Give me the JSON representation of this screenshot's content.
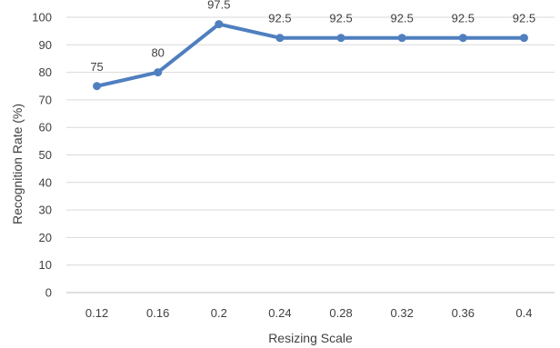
{
  "chart_data": {
    "type": "line",
    "title": "",
    "xlabel": "Resizing Scale",
    "ylabel": "Recognition Rate (%)",
    "categories": [
      "0.12",
      "0.16",
      "0.2",
      "0.24",
      "0.28",
      "0.32",
      "0.36",
      "0.4"
    ],
    "series": [
      {
        "values": [
          75,
          80,
          97.5,
          92.5,
          92.5,
          92.5,
          92.5,
          92.5
        ],
        "data_labels": [
          "75",
          "80",
          "97.5",
          "92.5",
          "92.5",
          "92.5",
          "92.5",
          "92.5"
        ],
        "color": "#4f7fbf"
      }
    ],
    "ylim": [
      0,
      100
    ],
    "yticks": [
      "0",
      "10",
      "20",
      "30",
      "40",
      "50",
      "60",
      "70",
      "80",
      "90",
      "100"
    ],
    "grid": true,
    "legend": "none"
  }
}
